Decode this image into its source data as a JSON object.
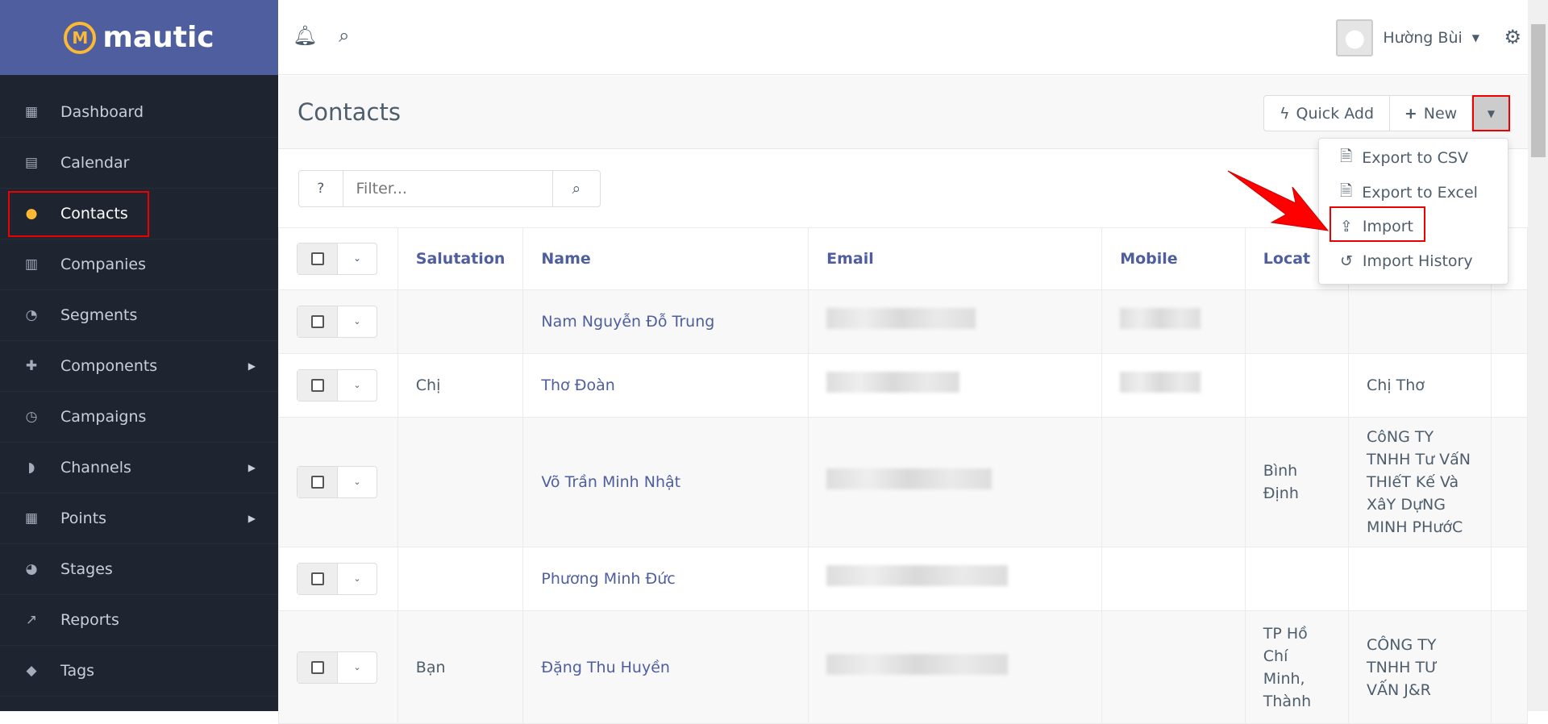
{
  "brand": {
    "name": "mautic",
    "accent": "#4e5e9e",
    "logo_color": "#fdb933"
  },
  "sidebar": {
    "items": [
      {
        "label": "Dashboard",
        "icon": "dashboard-icon",
        "glyph": "▦"
      },
      {
        "label": "Calendar",
        "icon": "calendar-icon",
        "glyph": "▤"
      },
      {
        "label": "Contacts",
        "icon": "user-icon",
        "glyph": "●",
        "active": true
      },
      {
        "label": "Companies",
        "icon": "building-icon",
        "glyph": "▥"
      },
      {
        "label": "Segments",
        "icon": "pie-chart-icon",
        "glyph": "◔"
      },
      {
        "label": "Components",
        "icon": "puzzle-icon",
        "glyph": "✚",
        "submenu": true
      },
      {
        "label": "Campaigns",
        "icon": "clock-icon",
        "glyph": "◷"
      },
      {
        "label": "Channels",
        "icon": "rss-icon",
        "glyph": "◗",
        "submenu": true
      },
      {
        "label": "Points",
        "icon": "calculator-icon",
        "glyph": "▦",
        "submenu": true
      },
      {
        "label": "Stages",
        "icon": "gauge-icon",
        "glyph": "◕"
      },
      {
        "label": "Reports",
        "icon": "line-chart-icon",
        "glyph": "↗"
      },
      {
        "label": "Tags",
        "icon": "tag-icon",
        "glyph": "◆"
      }
    ]
  },
  "topbar": {
    "user_name": "Hường Bùi"
  },
  "page": {
    "title": "Contacts",
    "quick_add": "Quick Add",
    "new": "New"
  },
  "menu": {
    "items": [
      "Export to CSV",
      "Export to Excel",
      "Import",
      "Import History"
    ]
  },
  "filter": {
    "placeholder": "Filter..."
  },
  "table": {
    "headers": [
      "Salutation",
      "Name",
      "Email",
      "Mobile",
      "Locat"
    ],
    "rows": [
      {
        "salutation": "",
        "name": "Nam Nguyễn Đỗ Trung",
        "location": "",
        "company": ""
      },
      {
        "salutation": "Chị",
        "name": "Thơ Đoàn",
        "location": "",
        "company": "Chị Thơ"
      },
      {
        "salutation": "",
        "name": "Võ Trần Minh Nhật",
        "location": "Bình Định",
        "company": "CôNG TY TNHH Tư VấN THIếT Kế Và XâY DựNG MINH PHướC"
      },
      {
        "salutation": "",
        "name": "Phương Minh Đức",
        "location": "",
        "company": ""
      },
      {
        "salutation": "Bạn",
        "name": "Đặng Thu Huyền",
        "location": "TP Hồ Chí Minh, Thành",
        "company": "CÔNG TY TNHH TƯ VẤN J&R"
      }
    ]
  }
}
